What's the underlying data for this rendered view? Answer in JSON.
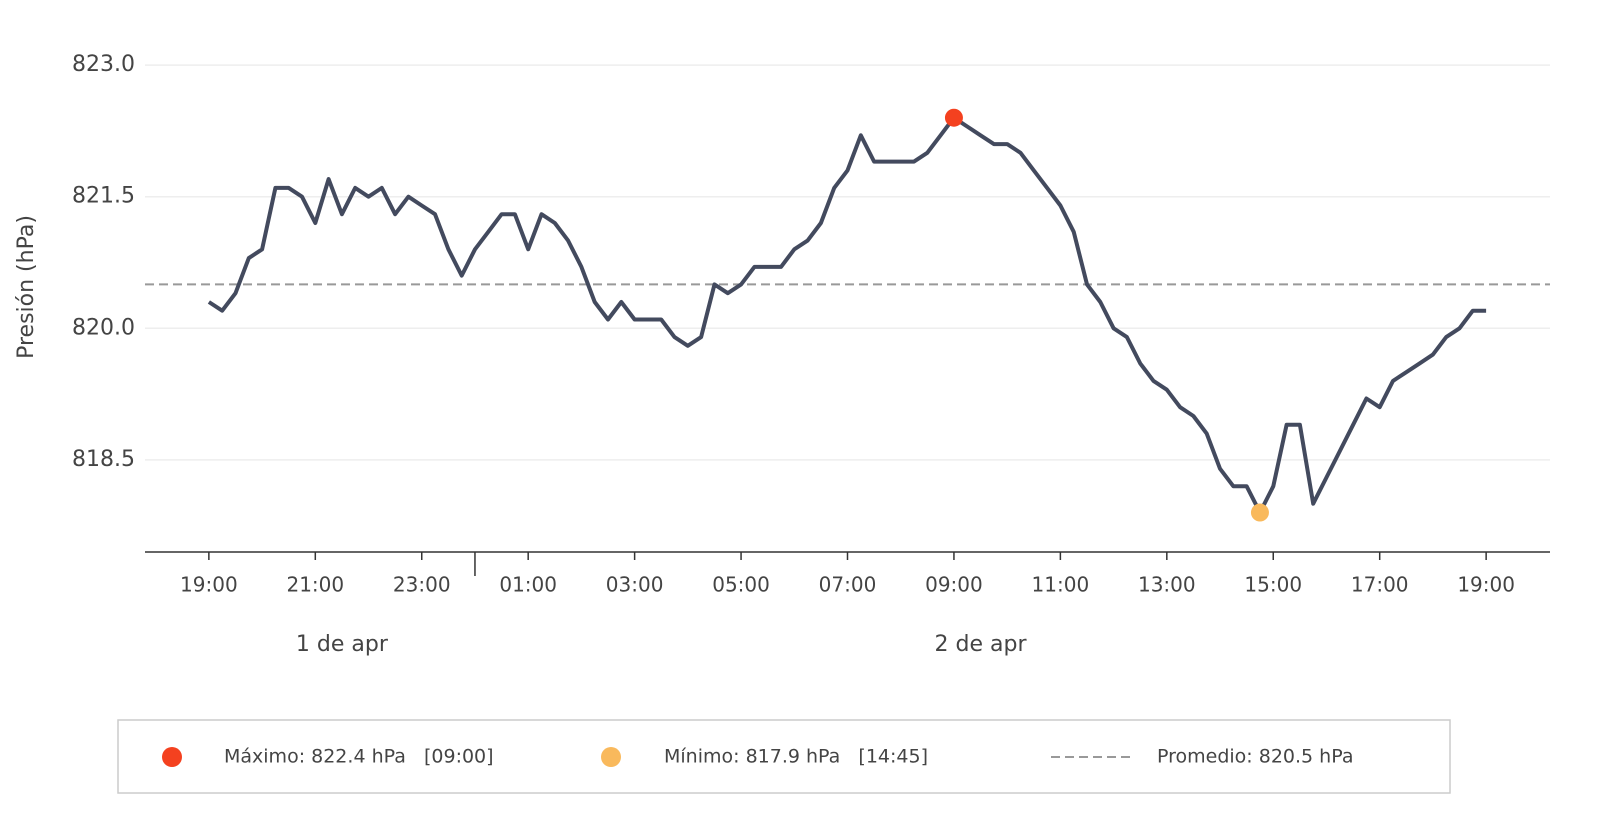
{
  "chart_data": {
    "type": "line",
    "y_label": "Presión (hPa)",
    "x": [
      19,
      19.25,
      19.5,
      19.75,
      20,
      20.25,
      20.5,
      20.75,
      21,
      21.25,
      21.5,
      21.75,
      22,
      22.25,
      22.5,
      22.75,
      23,
      23.25,
      23.5,
      23.75,
      24,
      24.25,
      24.5,
      24.75,
      25,
      25.25,
      25.5,
      25.75,
      26,
      26.25,
      26.5,
      26.75,
      27,
      27.25,
      27.5,
      27.75,
      28,
      28.25,
      28.5,
      28.75,
      29,
      29.25,
      29.5,
      29.75,
      30,
      30.25,
      30.5,
      30.75,
      31,
      31.25,
      31.5,
      31.75,
      32,
      32.25,
      32.5,
      32.75,
      33,
      33.25,
      33.5,
      33.75,
      34,
      34.25,
      34.5,
      34.75,
      35,
      35.25,
      35.5,
      35.75,
      36,
      36.25,
      36.5,
      36.75,
      37,
      37.25,
      37.5,
      37.75,
      38,
      38.25,
      38.5,
      38.75,
      39,
      39.25,
      39.5,
      39.75,
      40,
      40.25,
      40.5,
      40.75,
      41,
      41.25,
      41.5,
      41.75,
      42,
      42.25,
      42.5,
      42.75,
      43
    ],
    "values": [
      820.3,
      820.2,
      820.4,
      820.8,
      820.9,
      821.6,
      821.6,
      821.5,
      821.2,
      821.7,
      821.3,
      821.6,
      821.5,
      821.6,
      821.3,
      821.5,
      821.4,
      821.3,
      820.9,
      820.6,
      820.9,
      821.1,
      821.3,
      821.3,
      820.9,
      821.3,
      821.2,
      821.0,
      820.7,
      820.3,
      820.1,
      820.3,
      820.1,
      820.1,
      820.1,
      819.9,
      819.8,
      819.9,
      820.5,
      820.4,
      820.5,
      820.7,
      820.7,
      820.7,
      820.9,
      821.0,
      821.2,
      821.6,
      821.8,
      822.2,
      821.9,
      821.9,
      821.9,
      821.9,
      822.0,
      822.2,
      822.4,
      822.3,
      822.2,
      822.1,
      822.1,
      822.0,
      821.8,
      821.6,
      821.4,
      821.1,
      820.5,
      820.3,
      820.0,
      819.9,
      819.6,
      819.4,
      819.3,
      819.1,
      819.0,
      818.8,
      818.4,
      818.2,
      818.2,
      817.9,
      818.2,
      818.9,
      818.9,
      818.0,
      818.3,
      818.6,
      818.9,
      819.2,
      819.1,
      819.4,
      819.5,
      819.6,
      819.7,
      819.9,
      820.0,
      820.2,
      820.2
    ],
    "color": "#434a5e",
    "xlim": [
      17.8,
      44.2
    ],
    "ylim": [
      817.45,
      823.4
    ],
    "xticks": [
      {
        "value": 19,
        "label": "19:00"
      },
      {
        "value": 21,
        "label": "21:00"
      },
      {
        "value": 23,
        "label": "23:00"
      },
      {
        "value": 25,
        "label": "01:00"
      },
      {
        "value": 27,
        "label": "03:00"
      },
      {
        "value": 29,
        "label": "05:00"
      },
      {
        "value": 31,
        "label": "07:00"
      },
      {
        "value": 33,
        "label": "09:00"
      },
      {
        "value": 35,
        "label": "11:00"
      },
      {
        "value": 37,
        "label": "13:00"
      },
      {
        "value": 39,
        "label": "15:00"
      },
      {
        "value": 41,
        "label": "17:00"
      },
      {
        "value": 43,
        "label": "19:00"
      }
    ],
    "yticks": [
      818.5,
      {
        "value": 820,
        "label": "820.0"
      },
      821.5,
      {
        "value": 823,
        "label": "823.0"
      }
    ],
    "grid": true,
    "day_separator": 24,
    "days": [
      {
        "label": "1 de apr"
      },
      {
        "label": "2 de apr"
      }
    ],
    "max": {
      "x": 33,
      "value": 822.4,
      "color": "#f4411f",
      "label": "Máximo: 822.4 hPa   [09:00]"
    },
    "min": {
      "x": 38.75,
      "value": 817.9,
      "color": "#f9b95c",
      "label": "Mínimo: 817.9 hPa   [14:45]"
    },
    "mean": {
      "value": 820.5,
      "color": "#999999",
      "label": "Promedio: 820.5 hPa"
    }
  }
}
